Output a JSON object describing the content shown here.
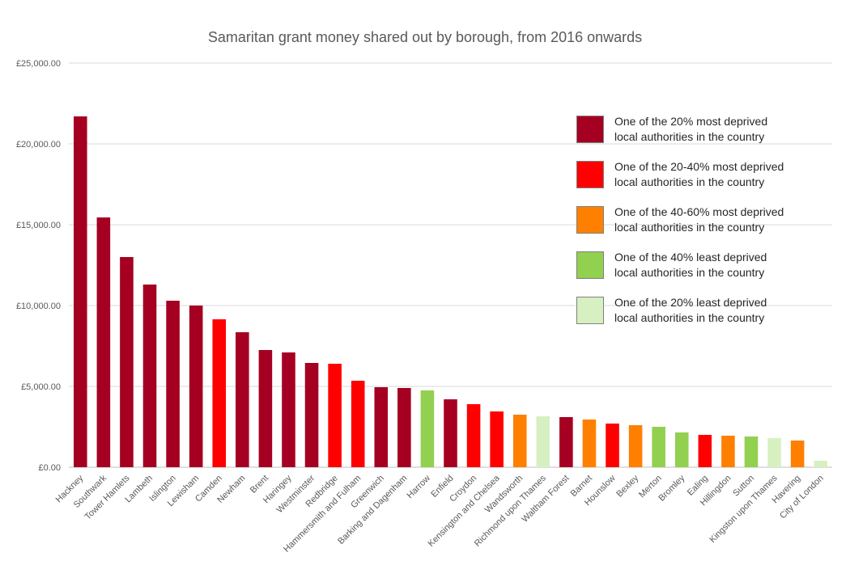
{
  "chart_data": {
    "type": "bar",
    "title": "Samaritan grant money shared out by borough, from 2016 onwards",
    "xlabel": "",
    "ylabel": "",
    "ylim": [
      0,
      25000
    ],
    "yticks": [
      "£0.00",
      "£5,000.00",
      "£10,000.00",
      "£15,000.00",
      "£20,000.00",
      "£25,000.00"
    ],
    "grid": true,
    "legend_position": "right",
    "categories": [
      "Hackney",
      "Southwark",
      "Tower Hamlets",
      "Lambeth",
      "Islington",
      "Lewisham",
      "Camden",
      "Newham",
      "Brent",
      "Haringey",
      "Westminster",
      "Redbridge",
      "Hammersmith and Fulham",
      "Greenwich",
      "Barking and Dagenham",
      "Harrow",
      "Enfield",
      "Croydon",
      "Kensington and Chelsea",
      "Wandsworth",
      "Richmond upon Thames",
      "Waltham Forest",
      "Barnet",
      "Hounslow",
      "Bexley",
      "Merton",
      "Bromley",
      "Ealing",
      "Hillingdon",
      "Sutton",
      "Kingston upon Thames",
      "Havering",
      "City of London"
    ],
    "values": [
      21700,
      15450,
      13000,
      11300,
      10300,
      10000,
      9150,
      8350,
      7250,
      7100,
      6450,
      6400,
      5350,
      4950,
      4900,
      4750,
      4200,
      3900,
      3450,
      3250,
      3150,
      3100,
      2950,
      2700,
      2600,
      2500,
      2150,
      2000,
      1950,
      1900,
      1800,
      1650,
      400
    ],
    "groups": [
      1,
      1,
      1,
      1,
      1,
      1,
      2,
      1,
      1,
      1,
      1,
      2,
      2,
      1,
      1,
      4,
      1,
      2,
      2,
      3,
      5,
      1,
      3,
      2,
      3,
      4,
      4,
      2,
      3,
      4,
      5,
      3,
      5
    ],
    "legend": [
      {
        "group": 1,
        "label": "One of the 20% most deprived\nlocal authorities in the country",
        "color": "#a50021"
      },
      {
        "group": 2,
        "label": "One of the 20-40% most deprived\nlocal authorities in the country",
        "color": "#ff0000"
      },
      {
        "group": 3,
        "label": "One of the 40-60% most deprived\nlocal authorities in the country",
        "color": "#ff8000"
      },
      {
        "group": 4,
        "label": "One of the 40% least deprived\nlocal authorities in the country",
        "color": "#92d050"
      },
      {
        "group": 5,
        "label": "One of the 20% least deprived\nlocal authorities in the country",
        "color": "#d6f0c2"
      }
    ]
  }
}
